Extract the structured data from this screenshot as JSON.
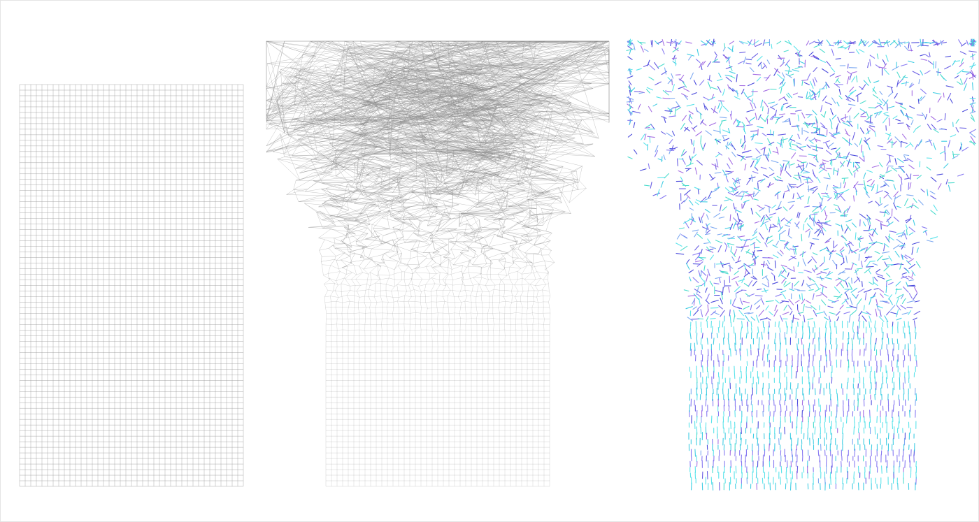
{
  "artwork": {
    "panels": [
      {
        "name": "ordered-grid",
        "style": "gray grid of rectangular cells"
      },
      {
        "name": "disordered-grid",
        "style": "gray line segments, chaotic at top, ordered at bottom"
      },
      {
        "name": "colored-dashes",
        "style": "short colored dashes, scattered at top, aligned rows at bottom"
      }
    ],
    "colors": {
      "background": "#ffffff",
      "frame": "#e4e4e4",
      "grid_line": "#9a9a9a",
      "chaos_line": "#8c8c8c",
      "dash_palette": [
        "#3a3ad8",
        "#5a4ee0",
        "#7a6af0",
        "#2ec8e0",
        "#49e0e8",
        "#9b5fe0",
        "#6fa0f0",
        "#3ad8c8"
      ]
    }
  }
}
